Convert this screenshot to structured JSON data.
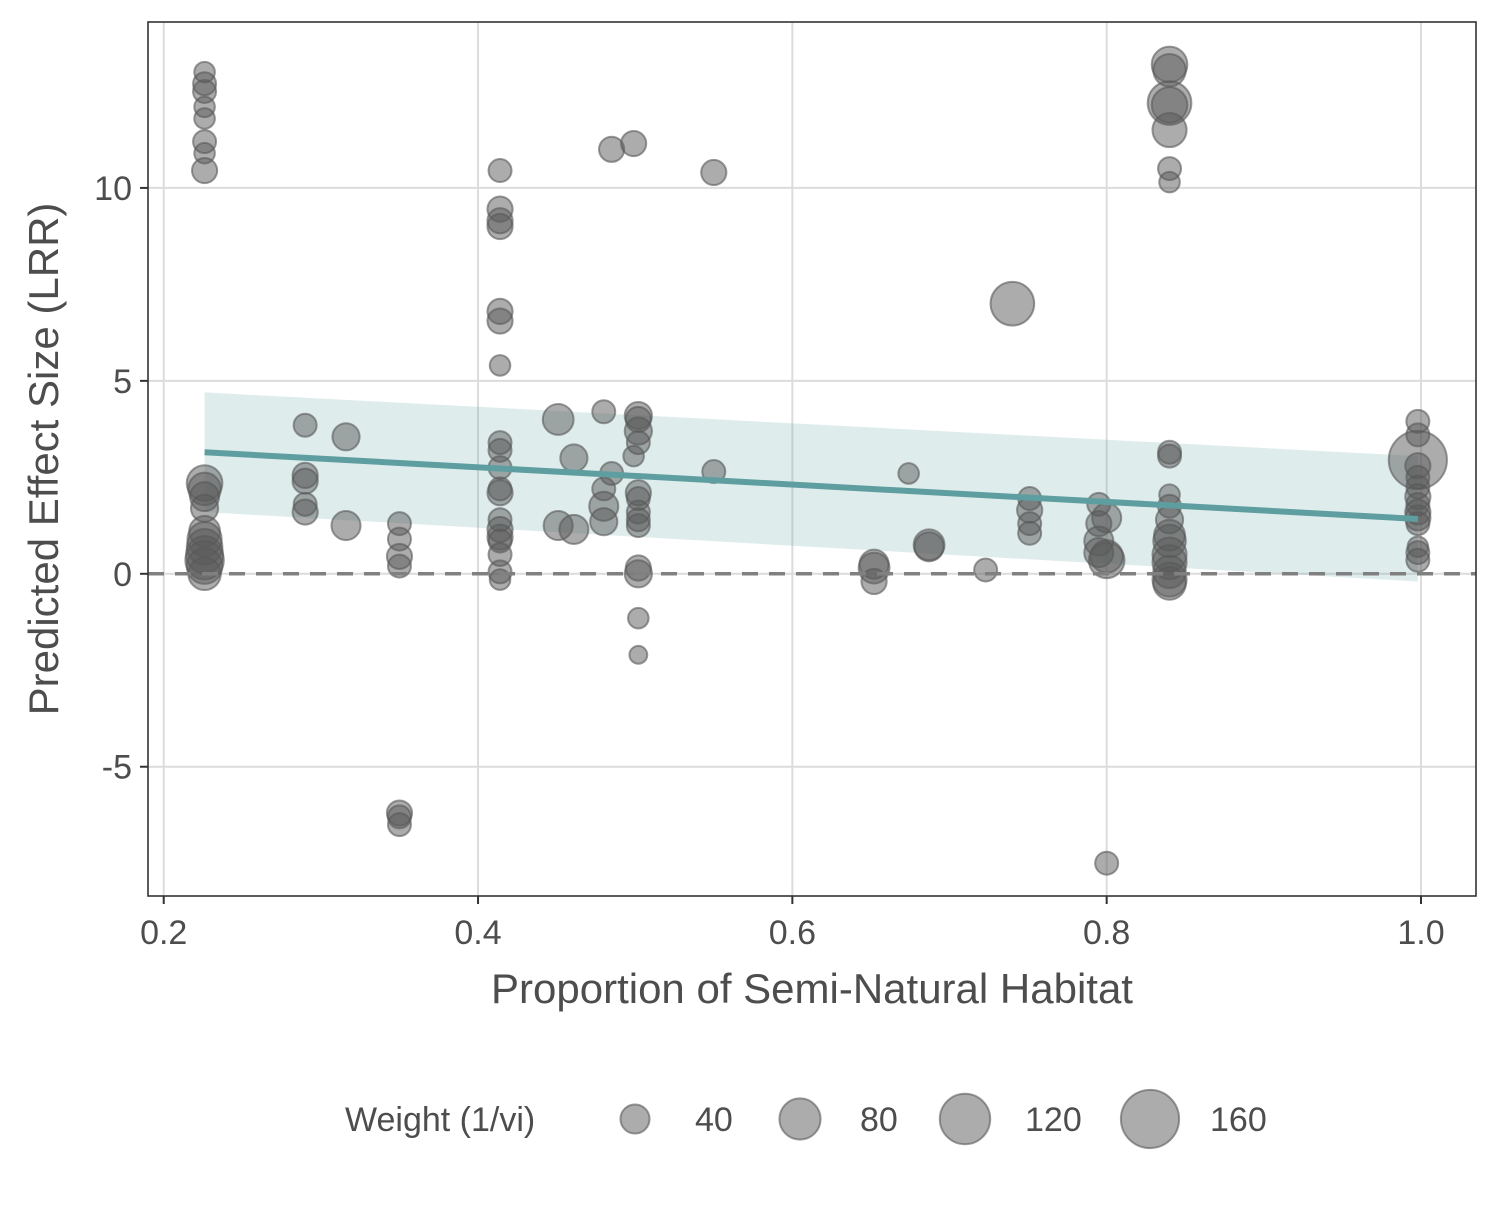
{
  "chart_data": {
    "type": "scatter",
    "xlabel": "Proportion of Semi-Natural Habitat",
    "ylabel": "Predicted Effect Size (LRR)",
    "xlim": [
      0.19,
      1.035
    ],
    "ylim": [
      -8.35,
      14.3
    ],
    "x_ticks": [
      {
        "value": 0.2,
        "label": "0.2"
      },
      {
        "value": 0.4,
        "label": "0.4"
      },
      {
        "value": 0.6,
        "label": "0.6"
      },
      {
        "value": 0.8,
        "label": "0.8"
      },
      {
        "value": 1.0,
        "label": "1.0"
      }
    ],
    "y_ticks": [
      {
        "value": -5,
        "label": "-5"
      },
      {
        "value": 0,
        "label": "0"
      },
      {
        "value": 5,
        "label": "5"
      },
      {
        "value": 10,
        "label": "10"
      }
    ],
    "grid": true,
    "reference_line": {
      "y": 0,
      "style": "dashed"
    },
    "fit_line": {
      "x": [
        0.226,
        0.998
      ],
      "y": [
        3.15,
        1.42
      ],
      "color": "#5F9EA0"
    },
    "confidence_band": {
      "x": [
        0.226,
        0.998
      ],
      "lower": [
        1.6,
        -0.2
      ],
      "upper": [
        4.7,
        3.05
      ],
      "color": "#5F9EA0"
    },
    "point_color": "#595959",
    "legend": {
      "title": "Weight (1/vi)",
      "placement": "bottom",
      "entries": [
        {
          "label": "40",
          "weight": 40
        },
        {
          "label": "80",
          "weight": 80
        },
        {
          "label": "120",
          "weight": 120
        },
        {
          "label": "160",
          "weight": 160
        }
      ]
    },
    "points": [
      {
        "x": 0.226,
        "y": 13.0,
        "w": 20
      },
      {
        "x": 0.226,
        "y": 12.7,
        "w": 25
      },
      {
        "x": 0.226,
        "y": 12.5,
        "w": 25
      },
      {
        "x": 0.226,
        "y": 12.1,
        "w": 20
      },
      {
        "x": 0.226,
        "y": 11.8,
        "w": 20
      },
      {
        "x": 0.226,
        "y": 11.2,
        "w": 25
      },
      {
        "x": 0.226,
        "y": 10.9,
        "w": 20
      },
      {
        "x": 0.226,
        "y": 10.45,
        "w": 30
      },
      {
        "x": 0.226,
        "y": 2.35,
        "w": 60
      },
      {
        "x": 0.226,
        "y": 2.2,
        "w": 50
      },
      {
        "x": 0.226,
        "y": 2.0,
        "w": 40
      },
      {
        "x": 0.226,
        "y": 1.7,
        "w": 35
      },
      {
        "x": 0.226,
        "y": 1.1,
        "w": 45
      },
      {
        "x": 0.226,
        "y": 0.9,
        "w": 55
      },
      {
        "x": 0.226,
        "y": 0.7,
        "w": 60
      },
      {
        "x": 0.226,
        "y": 0.5,
        "w": 65
      },
      {
        "x": 0.226,
        "y": 0.35,
        "w": 70
      },
      {
        "x": 0.226,
        "y": 0.2,
        "w": 60
      },
      {
        "x": 0.226,
        "y": 0.0,
        "w": 50
      },
      {
        "x": 0.29,
        "y": 3.85,
        "w": 25
      },
      {
        "x": 0.29,
        "y": 2.55,
        "w": 30
      },
      {
        "x": 0.29,
        "y": 2.4,
        "w": 30
      },
      {
        "x": 0.29,
        "y": 1.8,
        "w": 25
      },
      {
        "x": 0.29,
        "y": 1.6,
        "w": 30
      },
      {
        "x": 0.316,
        "y": 3.55,
        "w": 35
      },
      {
        "x": 0.316,
        "y": 1.25,
        "w": 40
      },
      {
        "x": 0.35,
        "y": 1.3,
        "w": 25
      },
      {
        "x": 0.35,
        "y": 0.9,
        "w": 25
      },
      {
        "x": 0.35,
        "y": 0.45,
        "w": 30
      },
      {
        "x": 0.35,
        "y": 0.2,
        "w": 25
      },
      {
        "x": 0.35,
        "y": -6.2,
        "w": 30
      },
      {
        "x": 0.35,
        "y": -6.3,
        "w": 25
      },
      {
        "x": 0.35,
        "y": -6.5,
        "w": 25
      },
      {
        "x": 0.414,
        "y": 10.45,
        "w": 25
      },
      {
        "x": 0.414,
        "y": 9.45,
        "w": 30
      },
      {
        "x": 0.414,
        "y": 9.15,
        "w": 30
      },
      {
        "x": 0.414,
        "y": 9.0,
        "w": 30
      },
      {
        "x": 0.414,
        "y": 6.8,
        "w": 30
      },
      {
        "x": 0.414,
        "y": 6.55,
        "w": 30
      },
      {
        "x": 0.414,
        "y": 5.4,
        "w": 20
      },
      {
        "x": 0.414,
        "y": 3.4,
        "w": 25
      },
      {
        "x": 0.414,
        "y": 3.2,
        "w": 25
      },
      {
        "x": 0.414,
        "y": 2.75,
        "w": 25
      },
      {
        "x": 0.414,
        "y": 2.2,
        "w": 25
      },
      {
        "x": 0.414,
        "y": 2.1,
        "w": 30
      },
      {
        "x": 0.414,
        "y": 1.4,
        "w": 25
      },
      {
        "x": 0.414,
        "y": 1.15,
        "w": 30
      },
      {
        "x": 0.414,
        "y": 0.95,
        "w": 30
      },
      {
        "x": 0.414,
        "y": 0.85,
        "w": 25
      },
      {
        "x": 0.414,
        "y": 0.5,
        "w": 25
      },
      {
        "x": 0.414,
        "y": 0.05,
        "w": 25
      },
      {
        "x": 0.414,
        "y": -0.15,
        "w": 20
      },
      {
        "x": 0.451,
        "y": 4.0,
        "w": 45
      },
      {
        "x": 0.451,
        "y": 1.25,
        "w": 40
      },
      {
        "x": 0.461,
        "y": 3.0,
        "w": 35
      },
      {
        "x": 0.461,
        "y": 1.15,
        "w": 40
      },
      {
        "x": 0.48,
        "y": 4.2,
        "w": 25
      },
      {
        "x": 0.48,
        "y": 2.2,
        "w": 25
      },
      {
        "x": 0.48,
        "y": 1.75,
        "w": 40
      },
      {
        "x": 0.48,
        "y": 1.35,
        "w": 35
      },
      {
        "x": 0.485,
        "y": 11.0,
        "w": 30
      },
      {
        "x": 0.485,
        "y": 2.6,
        "w": 25
      },
      {
        "x": 0.499,
        "y": 11.15,
        "w": 30
      },
      {
        "x": 0.499,
        "y": 3.05,
        "w": 20
      },
      {
        "x": 0.502,
        "y": 4.1,
        "w": 35
      },
      {
        "x": 0.502,
        "y": 4.0,
        "w": 30
      },
      {
        "x": 0.502,
        "y": 3.7,
        "w": 35
      },
      {
        "x": 0.502,
        "y": 3.4,
        "w": 25
      },
      {
        "x": 0.502,
        "y": 2.1,
        "w": 30
      },
      {
        "x": 0.502,
        "y": 1.95,
        "w": 25
      },
      {
        "x": 0.502,
        "y": 1.6,
        "w": 25
      },
      {
        "x": 0.502,
        "y": 1.4,
        "w": 25
      },
      {
        "x": 0.502,
        "y": 1.25,
        "w": 25
      },
      {
        "x": 0.502,
        "y": 0.15,
        "w": 30
      },
      {
        "x": 0.502,
        "y": 0.0,
        "w": 35
      },
      {
        "x": 0.502,
        "y": -1.15,
        "w": 20
      },
      {
        "x": 0.502,
        "y": -2.1,
        "w": 15
      },
      {
        "x": 0.55,
        "y": 10.4,
        "w": 30
      },
      {
        "x": 0.55,
        "y": 2.65,
        "w": 25
      },
      {
        "x": 0.652,
        "y": 0.25,
        "w": 40
      },
      {
        "x": 0.652,
        "y": 0.15,
        "w": 45
      },
      {
        "x": 0.652,
        "y": -0.2,
        "w": 30
      },
      {
        "x": 0.674,
        "y": 2.6,
        "w": 20
      },
      {
        "x": 0.687,
        "y": 0.75,
        "w": 45
      },
      {
        "x": 0.687,
        "y": 0.7,
        "w": 40
      },
      {
        "x": 0.723,
        "y": 0.1,
        "w": 25
      },
      {
        "x": 0.74,
        "y": 7.0,
        "w": 90
      },
      {
        "x": 0.751,
        "y": 1.95,
        "w": 25
      },
      {
        "x": 0.751,
        "y": 1.65,
        "w": 30
      },
      {
        "x": 0.751,
        "y": 1.3,
        "w": 25
      },
      {
        "x": 0.751,
        "y": 1.05,
        "w": 25
      },
      {
        "x": 0.795,
        "y": 1.8,
        "w": 25
      },
      {
        "x": 0.795,
        "y": 1.3,
        "w": 30
      },
      {
        "x": 0.795,
        "y": 0.85,
        "w": 40
      },
      {
        "x": 0.795,
        "y": 0.55,
        "w": 40
      },
      {
        "x": 0.8,
        "y": 1.45,
        "w": 40
      },
      {
        "x": 0.8,
        "y": 0.35,
        "w": 60
      },
      {
        "x": 0.8,
        "y": 0.45,
        "w": 50
      },
      {
        "x": 0.8,
        "y": -7.5,
        "w": 25
      },
      {
        "x": 0.84,
        "y": 13.2,
        "w": 60
      },
      {
        "x": 0.84,
        "y": 13.05,
        "w": 50
      },
      {
        "x": 0.84,
        "y": 12.2,
        "w": 90
      },
      {
        "x": 0.84,
        "y": 12.15,
        "w": 60
      },
      {
        "x": 0.84,
        "y": 11.5,
        "w": 55
      },
      {
        "x": 0.84,
        "y": 10.5,
        "w": 25
      },
      {
        "x": 0.84,
        "y": 10.15,
        "w": 20
      },
      {
        "x": 0.84,
        "y": 3.15,
        "w": 25
      },
      {
        "x": 0.84,
        "y": 3.05,
        "w": 25
      },
      {
        "x": 0.84,
        "y": 2.05,
        "w": 20
      },
      {
        "x": 0.84,
        "y": 1.75,
        "w": 25
      },
      {
        "x": 0.84,
        "y": 1.4,
        "w": 35
      },
      {
        "x": 0.84,
        "y": 1.0,
        "w": 45
      },
      {
        "x": 0.84,
        "y": 0.85,
        "w": 50
      },
      {
        "x": 0.84,
        "y": 0.5,
        "w": 55
      },
      {
        "x": 0.84,
        "y": 0.3,
        "w": 55
      },
      {
        "x": 0.84,
        "y": 0.05,
        "w": 50
      },
      {
        "x": 0.84,
        "y": -0.15,
        "w": 55
      },
      {
        "x": 0.84,
        "y": -0.25,
        "w": 50
      },
      {
        "x": 0.998,
        "y": 3.95,
        "w": 25
      },
      {
        "x": 0.998,
        "y": 3.6,
        "w": 25
      },
      {
        "x": 0.998,
        "y": 2.95,
        "w": 160
      },
      {
        "x": 0.998,
        "y": 2.8,
        "w": 30
      },
      {
        "x": 0.998,
        "y": 2.5,
        "w": 25
      },
      {
        "x": 0.998,
        "y": 2.25,
        "w": 25
      },
      {
        "x": 0.998,
        "y": 2.0,
        "w": 30
      },
      {
        "x": 0.998,
        "y": 1.8,
        "w": 25
      },
      {
        "x": 0.998,
        "y": 1.6,
        "w": 30
      },
      {
        "x": 0.998,
        "y": 1.45,
        "w": 30
      },
      {
        "x": 0.998,
        "y": 1.3,
        "w": 25
      },
      {
        "x": 0.998,
        "y": 0.7,
        "w": 20
      },
      {
        "x": 0.998,
        "y": 0.55,
        "w": 25
      },
      {
        "x": 0.998,
        "y": 0.35,
        "w": 25
      }
    ]
  }
}
